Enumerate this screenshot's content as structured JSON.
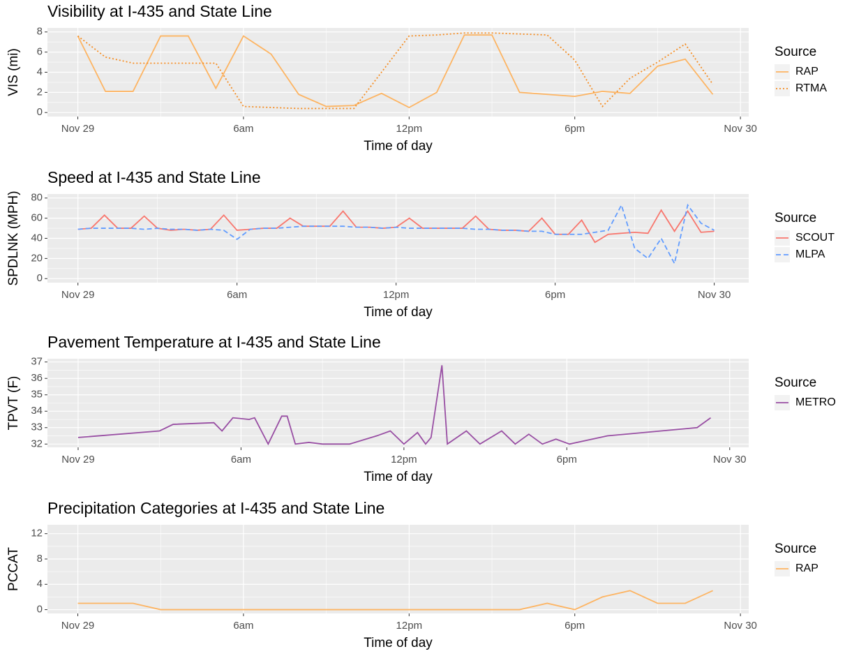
{
  "chart_data": [
    {
      "type": "line",
      "title": "Visibility at I-435 and State Line",
      "x_label": "Time of day",
      "y_label": "VIS (mi)",
      "legend_title": "Source",
      "x": [
        0,
        1,
        2,
        3,
        4,
        5,
        6,
        7,
        8,
        9,
        10,
        11,
        12,
        13,
        14,
        15,
        16,
        17,
        18,
        19,
        20,
        21,
        22,
        23
      ],
      "xlim": [
        -1.1,
        24.3
      ],
      "xticks": [
        {
          "value": 0,
          "label": "Nov 29"
        },
        {
          "value": 6,
          "label": "6am"
        },
        {
          "value": 12,
          "label": "12pm"
        },
        {
          "value": 18,
          "label": "6pm"
        },
        {
          "value": 24,
          "label": "Nov 30"
        }
      ],
      "ylim": [
        -0.4,
        8.4
      ],
      "yticks": [
        0,
        2,
        4,
        6,
        8
      ],
      "series": [
        {
          "name": "RAP",
          "color": "#fdb462",
          "dash": "solid",
          "values": [
            7.6,
            2.1,
            2.1,
            7.6,
            7.6,
            2.4,
            7.6,
            5.8,
            1.8,
            0.6,
            0.7,
            1.9,
            0.5,
            2.0,
            7.7,
            7.7,
            2.0,
            1.8,
            1.6,
            2.1,
            1.9,
            4.6,
            5.3,
            1.8
          ]
        },
        {
          "name": "RTMA",
          "color": "#f58b1f",
          "dash": "dotted",
          "values": [
            7.6,
            5.5,
            4.9,
            4.9,
            4.9,
            4.9,
            0.6,
            0.5,
            0.4,
            0.4,
            0.4,
            4.0,
            7.6,
            7.7,
            7.9,
            7.9,
            7.8,
            7.7,
            5.2,
            0.6,
            3.4,
            5.0,
            6.8,
            2.8
          ]
        }
      ]
    },
    {
      "type": "line",
      "title": "Speed at I-435 and State Line",
      "x_label": "Time of day",
      "y_label": "SPDLNK (MPH)",
      "legend_title": "Source",
      "x": [
        0,
        0.5,
        1,
        1.5,
        2,
        2.5,
        3,
        3.5,
        4,
        4.5,
        5,
        5.5,
        6,
        6.5,
        7,
        7.5,
        8,
        8.5,
        9,
        9.5,
        10,
        10.5,
        11,
        11.5,
        12,
        12.5,
        13,
        13.5,
        14,
        14.5,
        15,
        15.5,
        16,
        16.5,
        17,
        17.5,
        18,
        18.5,
        19,
        19.5,
        20,
        20.5,
        21,
        21.5,
        22,
        22.5,
        23,
        23.5,
        24
      ],
      "xlim": [
        -1.15,
        25.3
      ],
      "xticks": [
        {
          "value": 0,
          "label": "Nov 29"
        },
        {
          "value": 6,
          "label": "6am"
        },
        {
          "value": 12,
          "label": "12pm"
        },
        {
          "value": 18,
          "label": "6pm"
        },
        {
          "value": 24,
          "label": "Nov 30"
        }
      ],
      "ylim": [
        -4,
        84
      ],
      "yticks": [
        0,
        20,
        40,
        60,
        80
      ],
      "series": [
        {
          "name": "SCOUT",
          "color": "#f8766d",
          "dash": "solid",
          "values": [
            49,
            50,
            63,
            50,
            50,
            62,
            50,
            48,
            49,
            48,
            49,
            63,
            48,
            49,
            50,
            50,
            60,
            52,
            52,
            52,
            67,
            51,
            51,
            50,
            51,
            60,
            50,
            50,
            50,
            50,
            62,
            49,
            48,
            48,
            47,
            60,
            44,
            44,
            58,
            36,
            44,
            45,
            46,
            45,
            68,
            47,
            67,
            46,
            47
          ]
        },
        {
          "name": "MLPA",
          "color": "#619cff",
          "dash": "dashed",
          "values": [
            49,
            50,
            50,
            50,
            50,
            49,
            50,
            49,
            49,
            48,
            49,
            48,
            39,
            49,
            50,
            50,
            51,
            52,
            52,
            52,
            52,
            51,
            51,
            50,
            51,
            50,
            50,
            50,
            50,
            50,
            49,
            49,
            48,
            48,
            47,
            47,
            44,
            44,
            44,
            46,
            48,
            73,
            30,
            20,
            40,
            15,
            73,
            55,
            48
          ]
        }
      ]
    },
    {
      "type": "line",
      "title": "Pavement Temperature at I-435 and State Line",
      "x_label": "Time of day",
      "y_label": "TPVT (F)",
      "legend_title": "Source",
      "x": [
        0,
        3,
        3.5,
        5,
        5.3,
        5.7,
        6.3,
        6.5,
        7,
        7.5,
        7.7,
        8,
        8.5,
        9,
        10,
        11,
        11.5,
        12,
        12.5,
        12.8,
        13.0,
        13.4,
        13.6,
        14.3,
        14.8,
        15.6,
        16.1,
        16.6,
        17.1,
        17.6,
        18.1,
        19.5,
        22.8,
        23.3
      ],
      "xlim": [
        -1.13,
        24.7
      ],
      "xticks": [
        {
          "value": 0,
          "label": "Nov 29"
        },
        {
          "value": 6,
          "label": "6am"
        },
        {
          "value": 12,
          "label": "12pm"
        },
        {
          "value": 18,
          "label": "6pm"
        },
        {
          "value": 24,
          "label": "Nov 30"
        }
      ],
      "ylim": [
        31.8,
        37.2
      ],
      "yticks": [
        32,
        33,
        34,
        35,
        36,
        37
      ],
      "series": [
        {
          "name": "METRO",
          "color": "#984ea3",
          "dash": "solid",
          "values": [
            32.4,
            32.8,
            33.2,
            33.3,
            32.8,
            33.6,
            33.5,
            33.6,
            32.0,
            33.7,
            33.7,
            32.0,
            32.1,
            32.0,
            32.0,
            32.5,
            32.8,
            32.0,
            32.7,
            32.0,
            32.4,
            36.8,
            32.0,
            32.8,
            32.0,
            32.8,
            32.0,
            32.6,
            32.0,
            32.3,
            32.0,
            32.5,
            33.0,
            33.6
          ]
        }
      ]
    },
    {
      "type": "line",
      "title": "Precipitation Categories at I-435 and State Line",
      "x_label": "Time of day",
      "y_label": "PCCAT",
      "legend_title": "Source",
      "x": [
        0,
        1,
        2,
        3,
        4,
        5,
        6,
        7,
        8,
        9,
        10,
        11,
        12,
        13,
        14,
        15,
        16,
        17,
        18,
        19,
        20,
        21,
        22,
        23
      ],
      "xlim": [
        -1.1,
        24.3
      ],
      "xticks": [
        {
          "value": 0,
          "label": "Nov 29"
        },
        {
          "value": 6,
          "label": "6am"
        },
        {
          "value": 12,
          "label": "12pm"
        },
        {
          "value": 18,
          "label": "6pm"
        },
        {
          "value": 24,
          "label": "Nov 30"
        }
      ],
      "ylim": [
        -0.6,
        13.4
      ],
      "yticks": [
        0,
        4,
        8,
        12
      ],
      "series": [
        {
          "name": "RAP",
          "color": "#fdb462",
          "dash": "solid",
          "values": [
            1,
            1,
            1,
            0,
            0,
            0,
            0,
            0,
            0,
            0,
            0,
            0,
            0,
            0,
            0,
            0,
            0,
            1,
            0,
            2,
            3,
            1,
            1,
            3
          ]
        }
      ]
    }
  ]
}
